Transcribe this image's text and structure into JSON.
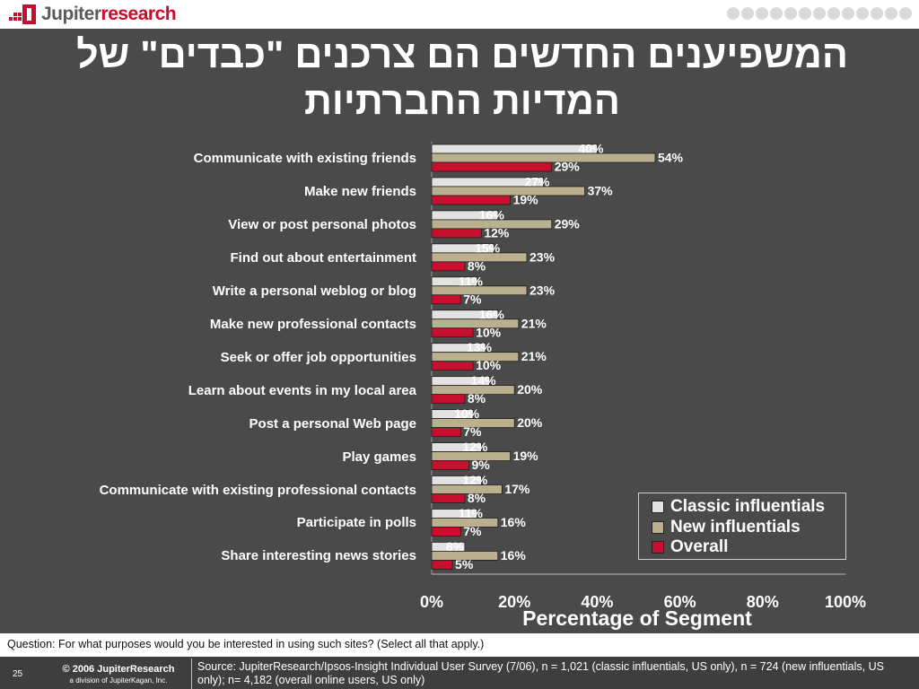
{
  "header": {
    "logo_part1": "Jupiter",
    "logo_part2": "research"
  },
  "title": "המשפיענים החדשים הם צרכנים \"כבדים\" של המדיות החברתיות",
  "colors": {
    "background": "#4a4a4a",
    "classic": "#e2e2e2",
    "new": "#bab08f",
    "overall": "#c8102e"
  },
  "chart_data": {
    "type": "bar",
    "orientation": "horizontal",
    "categories": [
      "Communicate with existing friends",
      "Make new friends",
      "View or post personal photos",
      "Find out about entertainment",
      "Write a personal weblog or blog",
      "Make new professional contacts",
      "Seek or offer job opportunities",
      "Learn about events in my local area",
      "Post a personal Web page",
      "Play games",
      "Communicate with existing professional contacts",
      "Participate in polls",
      "Share interesting news stories"
    ],
    "series": [
      {
        "name": "Classic influentials",
        "values": [
          40,
          27,
          16,
          15,
          11,
          16,
          13,
          14,
          10,
          12,
          12,
          11,
          8
        ]
      },
      {
        "name": "New influentials",
        "values": [
          54,
          37,
          29,
          23,
          23,
          21,
          21,
          20,
          20,
          19,
          17,
          16,
          16
        ]
      },
      {
        "name": "Overall",
        "values": [
          29,
          19,
          12,
          8,
          7,
          10,
          10,
          8,
          7,
          9,
          8,
          7,
          5
        ]
      }
    ],
    "value_suffix": "%",
    "xlabel": "Percentage of Segment",
    "xlim": [
      0,
      100
    ],
    "xticks": [
      "0%",
      "20%",
      "40%",
      "60%",
      "80%",
      "100%"
    ],
    "legend_position": "lower-right",
    "grid": false
  },
  "footer": {
    "question": "Question: For what purposes would you be interested in using such sites? (Select all that apply.)",
    "slide_number": "25",
    "copyright": "© 2006 JupiterResearch",
    "division": "a division of JupiterKagan, Inc.",
    "source": "Source: JupiterResearch/Ipsos-Insight Individual User Survey (7/06), n = 1,021 (classic influentials, US only), n = 724 (new influentials, US only); n= 4,182 (overall online users, US only)"
  }
}
